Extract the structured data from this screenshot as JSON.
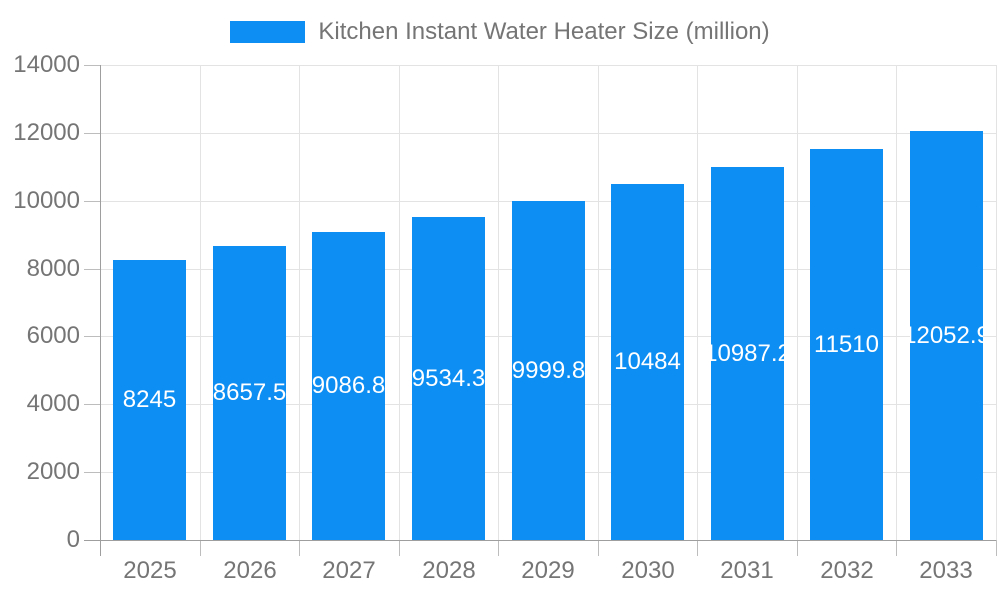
{
  "legend": {
    "label": "Kitchen Instant Water Heater Size (million)"
  },
  "colors": {
    "bar": "#0D8EF3",
    "bar_label": "#FFFFFF",
    "text": "#757575",
    "grid": "#E3E3E3",
    "axis": "#9E9E9E",
    "tick": "#BDBDBD"
  },
  "chart_data": {
    "type": "bar",
    "title": "Kitchen Instant Water Heater Size (million)",
    "categories": [
      "2025",
      "2026",
      "2027",
      "2028",
      "2029",
      "2030",
      "2031",
      "2032",
      "2033"
    ],
    "values": [
      8245,
      8657.5,
      9086.8,
      9534.3,
      9999.8,
      10484,
      10987.2,
      11510,
      12052.9
    ],
    "xlabel": "",
    "ylabel": "",
    "ylim": [
      0,
      14000
    ],
    "y_ticks": [
      0,
      2000,
      4000,
      6000,
      8000,
      10000,
      12000,
      14000
    ],
    "grid": true,
    "legend_position": "top",
    "value_labels": "inside-center"
  }
}
